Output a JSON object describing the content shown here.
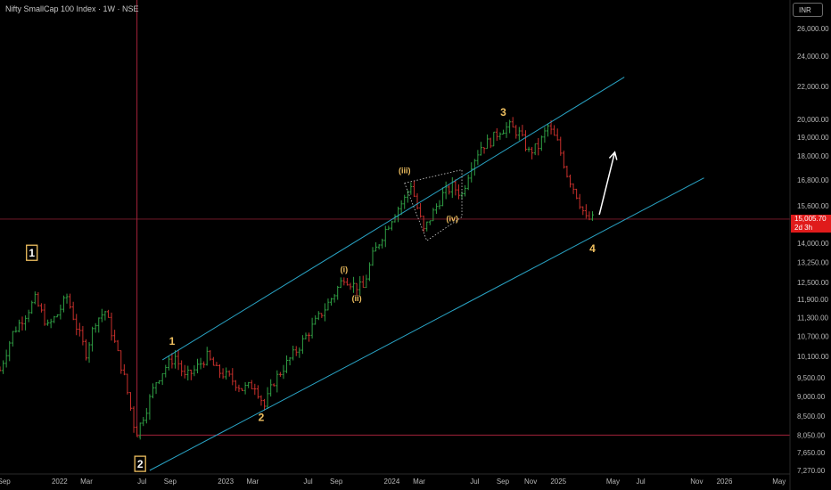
{
  "header": {
    "title": "Nifty SmallCap 100 Index · 1W · NSE",
    "currency": "INR"
  },
  "last_price": {
    "value": "15,005.70",
    "countdown": "2d 3h",
    "color": "#e01b1b"
  },
  "colors": {
    "up": "#2f9e44",
    "down": "#c9302c",
    "channel": "#29a3c4",
    "wave": "#f0c060",
    "box": "#f0c060",
    "guide": "#a3223a"
  },
  "chart_data": {
    "type": "ohlc",
    "y_axis": {
      "scale": "log",
      "ticks": [
        7270,
        7650,
        8050,
        8500,
        9000,
        9500,
        10100,
        10700,
        11300,
        11900,
        12500,
        13250,
        14000,
        15600,
        16800,
        18000,
        19000,
        20000,
        22000,
        24000,
        26000
      ],
      "tick_labels": [
        "7,270.00",
        "7,650.00",
        "8,050.00",
        "8,500.00",
        "9,000.00",
        "9,500.00",
        "10,100.00",
        "10,700.00",
        "11,300.00",
        "11,900.00",
        "12,500.00",
        "13,250.00",
        "14,000.00",
        "15,600.00",
        "16,800.00",
        "18,000.00",
        "19,000.00",
        "20,000.00",
        "22,000.00",
        "24,000.00",
        "26,000.00"
      ]
    },
    "x_axis": {
      "ticks": [
        "2021-09-01",
        "2022-01-01",
        "2022-03-01",
        "2022-07-01",
        "2022-09-01",
        "2023-01-01",
        "2023-03-01",
        "2023-07-01",
        "2023-09-01",
        "2024-01-01",
        "2024-03-01",
        "2024-07-01",
        "2024-09-01",
        "2024-11-01",
        "2025-01-01",
        "2025-05-01",
        "2025-07-01",
        "2025-11-01",
        "2026-01-01",
        "2026-05-01"
      ],
      "tick_labels": [
        "Sep",
        "2022",
        "Mar",
        "Jul",
        "Sep",
        "2023",
        "Mar",
        "Jul",
        "Sep",
        "2024",
        "Mar",
        "Jul",
        "Sep",
        "Nov",
        "2025",
        "May",
        "Jul",
        "Nov",
        "2026",
        "May"
      ],
      "range": [
        "2021-08-23",
        "2026-05-25"
      ]
    },
    "price_series": [
      [
        "2021-08-23",
        9700
      ],
      [
        "2021-09-20",
        10800
      ],
      [
        "2021-10-18",
        11400
      ],
      [
        "2021-11-08",
        11900
      ],
      [
        "2021-12-06",
        11000
      ],
      [
        "2021-12-27",
        11400
      ],
      [
        "2022-01-17",
        12000
      ],
      [
        "2022-02-07",
        11000
      ],
      [
        "2022-02-28",
        10200
      ],
      [
        "2022-03-21",
        11200
      ],
      [
        "2022-04-11",
        11500
      ],
      [
        "2022-05-02",
        10500
      ],
      [
        "2022-05-23",
        9500
      ],
      [
        "2022-06-13",
        8300
      ],
      [
        "2022-06-20",
        8100
      ],
      [
        "2022-07-11",
        8700
      ],
      [
        "2022-08-01",
        9400
      ],
      [
        "2022-08-22",
        9800
      ],
      [
        "2022-09-12",
        10100
      ],
      [
        "2022-10-03",
        9500
      ],
      [
        "2022-10-24",
        9700
      ],
      [
        "2022-11-21",
        10100
      ],
      [
        "2022-12-12",
        9700
      ],
      [
        "2023-01-09",
        9500
      ],
      [
        "2023-02-06",
        9200
      ],
      [
        "2023-03-06",
        9300
      ],
      [
        "2023-03-27",
        8750
      ],
      [
        "2023-04-17",
        9400
      ],
      [
        "2023-05-15",
        9900
      ],
      [
        "2023-06-12",
        10400
      ],
      [
        "2023-07-10",
        11000
      ],
      [
        "2023-08-07",
        11600
      ],
      [
        "2023-08-28",
        12100
      ],
      [
        "2023-09-18",
        12700
      ],
      [
        "2023-10-09",
        12400
      ],
      [
        "2023-10-30",
        12300
      ],
      [
        "2023-11-20",
        13500
      ],
      [
        "2023-12-11",
        14300
      ],
      [
        "2024-01-08",
        15300
      ],
      [
        "2024-01-29",
        15900
      ],
      [
        "2024-02-12",
        16600
      ],
      [
        "2024-02-26",
        15500
      ],
      [
        "2024-03-11",
        14500
      ],
      [
        "2024-04-01",
        15300
      ],
      [
        "2024-04-22",
        16100
      ],
      [
        "2024-05-13",
        16500
      ],
      [
        "2024-06-03",
        16100
      ],
      [
        "2024-06-24",
        17600
      ],
      [
        "2024-07-15",
        18500
      ],
      [
        "2024-08-05",
        18800
      ],
      [
        "2024-08-26",
        19400
      ],
      [
        "2024-09-16",
        19600
      ],
      [
        "2024-10-07",
        19200
      ],
      [
        "2024-10-28",
        18200
      ],
      [
        "2024-11-18",
        18500
      ],
      [
        "2024-12-09",
        19600
      ],
      [
        "2024-12-30",
        18700
      ],
      [
        "2025-01-20",
        17100
      ],
      [
        "2025-02-10",
        16100
      ],
      [
        "2025-03-03",
        15000
      ],
      [
        "2025-03-17",
        15005.7
      ]
    ],
    "channel_lines": [
      {
        "name": "upper-channel",
        "from": [
          "2022-08-15",
          10000
        ],
        "to": [
          "2025-05-26",
          22600
        ]
      },
      {
        "name": "lower-channel",
        "from": [
          "2022-07-18",
          7270
        ],
        "to": [
          "2025-11-17",
          16900
        ]
      }
    ],
    "wave_labels": [
      {
        "text": "1",
        "x": "2022-09-05",
        "y": 10450
      },
      {
        "text": "2",
        "x": "2023-03-20",
        "y": 8380
      },
      {
        "text": "3",
        "x": "2024-09-02",
        "y": 20200
      },
      {
        "text": "4",
        "x": "2025-03-17",
        "y": 13650
      },
      {
        "text": "(i)",
        "x": "2023-09-18",
        "y": 12870
      },
      {
        "text": "(ii)",
        "x": "2023-10-16",
        "y": 11850
      },
      {
        "text": "(iii)",
        "x": "2024-01-29",
        "y": 17120
      },
      {
        "text": "(iv)",
        "x": "2024-05-13",
        "y": 14900
      }
    ],
    "boxed_labels": [
      {
        "text": "1",
        "x": "2021-11-01",
        "y": 13600
      },
      {
        "text": "2",
        "x": "2022-06-27",
        "y": 7400
      }
    ],
    "projection_arrow": {
      "from": [
        "2025-04-01",
        15200
      ],
      "to": [
        "2025-05-05",
        18200
      ]
    },
    "reference_lines": {
      "horizontal_low": 8050,
      "vertical_date": "2022-06-20"
    }
  }
}
